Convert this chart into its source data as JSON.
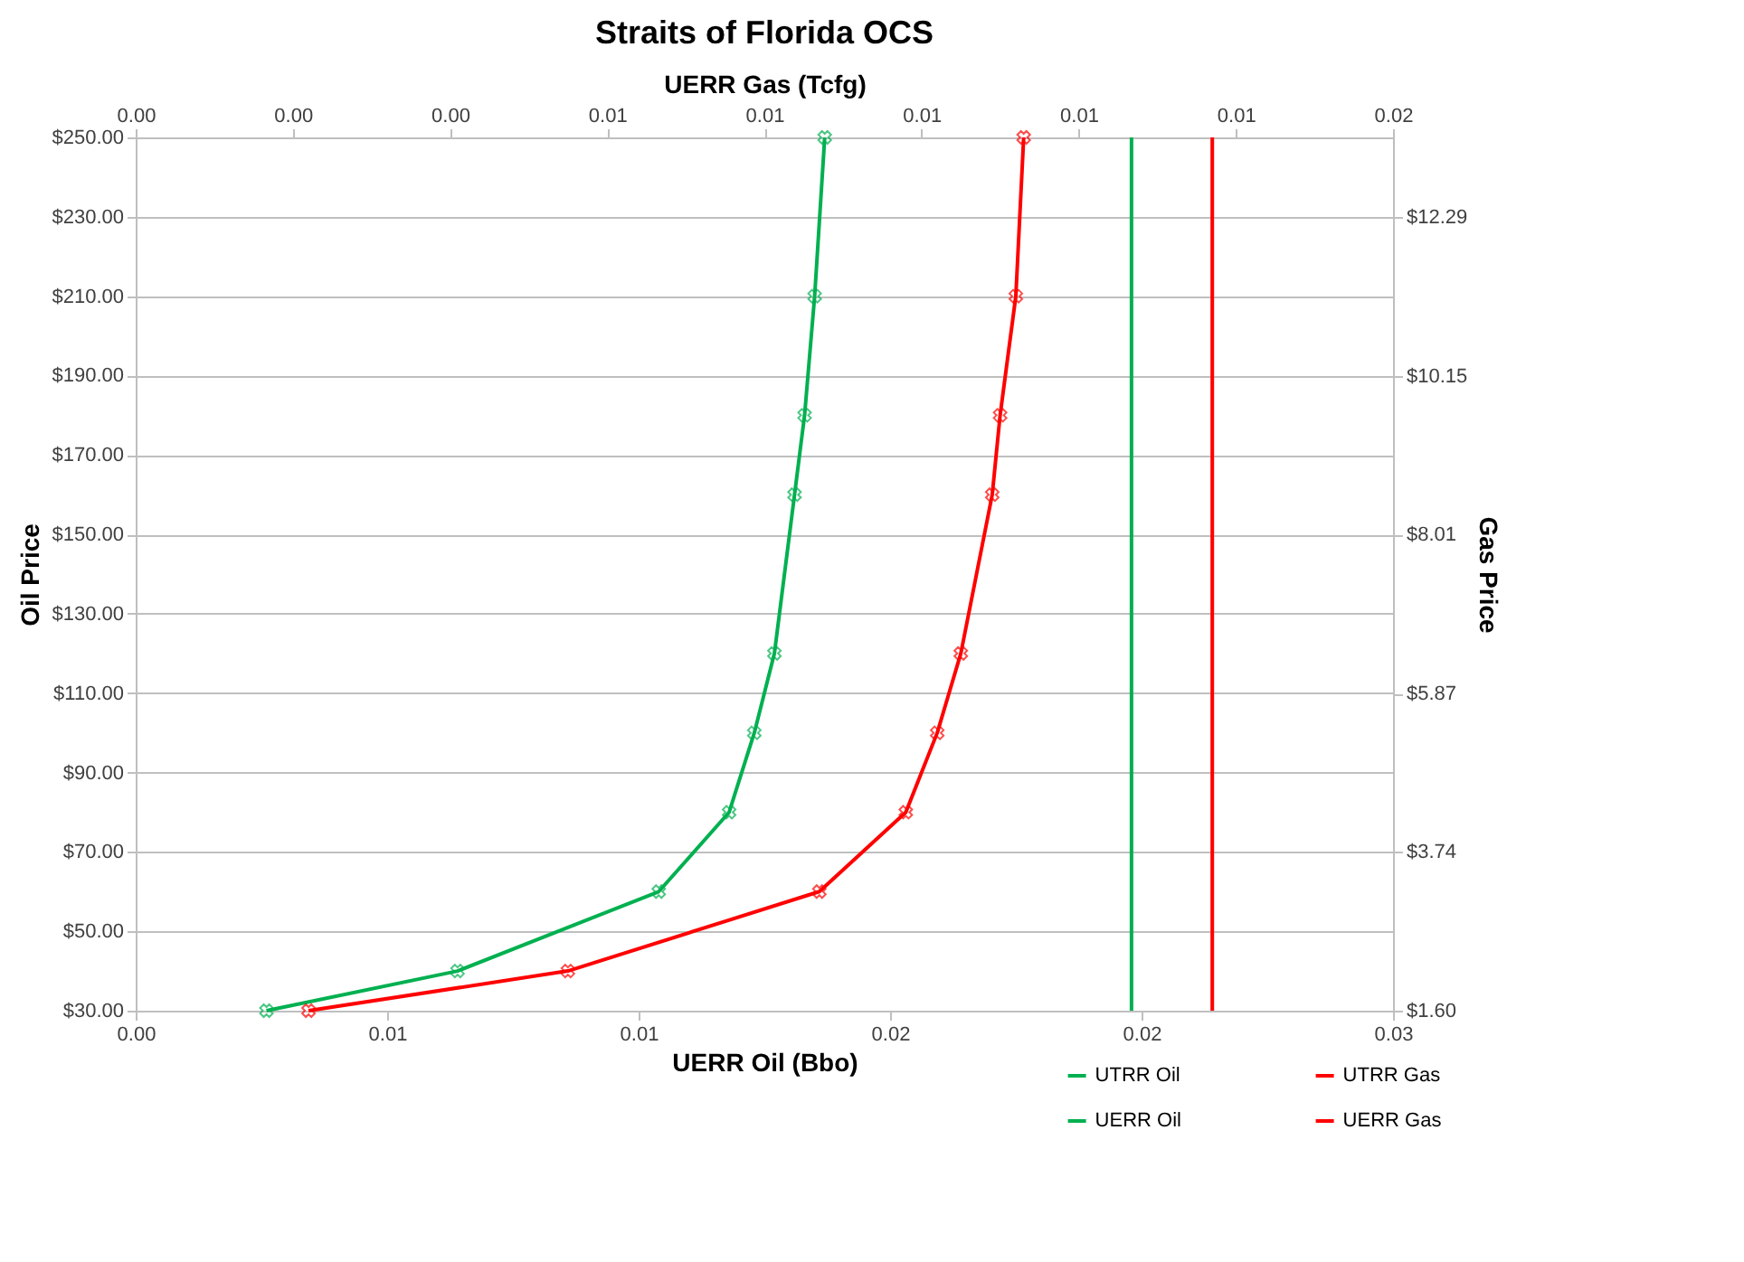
{
  "chart_data": {
    "type": "line",
    "title": "Straits of Florida OCS",
    "xlabel": "UERR Oil (Bbo)",
    "x2label": "UERR Gas (Tcfg)",
    "ylabel": "Oil Price",
    "y2label": "Gas Price",
    "xlim": [
      0,
      0.025
    ],
    "xticks": [
      {
        "value": 0,
        "label": "0.00"
      },
      {
        "value": 0.005,
        "label": "0.01"
      },
      {
        "value": 0.01,
        "label": "0.01"
      },
      {
        "value": 0.015,
        "label": "0.02"
      },
      {
        "value": 0.02,
        "label": "0.02"
      },
      {
        "value": 0.025,
        "label": "0.03"
      }
    ],
    "x2lim": [
      0,
      0.016
    ],
    "x2ticks": [
      {
        "value": 0,
        "label": "0.00"
      },
      {
        "value": 0.002,
        "label": "0.00"
      },
      {
        "value": 0.004,
        "label": "0.00"
      },
      {
        "value": 0.006,
        "label": "0.01"
      },
      {
        "value": 0.008,
        "label": "0.01"
      },
      {
        "value": 0.01,
        "label": "0.01"
      },
      {
        "value": 0.012,
        "label": "0.01"
      },
      {
        "value": 0.014,
        "label": "0.01"
      },
      {
        "value": 0.016,
        "label": "0.02"
      }
    ],
    "ylim": [
      30,
      250
    ],
    "yticks": [
      {
        "value": 30,
        "label": "$30.00"
      },
      {
        "value": 50,
        "label": "$50.00"
      },
      {
        "value": 70,
        "label": "$70.00"
      },
      {
        "value": 90,
        "label": "$90.00"
      },
      {
        "value": 110,
        "label": "$110.00"
      },
      {
        "value": 130,
        "label": "$130.00"
      },
      {
        "value": 150,
        "label": "$150.00"
      },
      {
        "value": 170,
        "label": "$170.00"
      },
      {
        "value": 190,
        "label": "$190.00"
      },
      {
        "value": 210,
        "label": "$210.00"
      },
      {
        "value": 230,
        "label": "$230.00"
      },
      {
        "value": 250,
        "label": "$250.00"
      }
    ],
    "y2lim": [
      1.6,
      13.36
    ],
    "y2ticks": [
      {
        "value": 1.6,
        "label": "$1.60"
      },
      {
        "value": 3.74,
        "label": "$3.74"
      },
      {
        "value": 5.87,
        "label": "$5.87"
      },
      {
        "value": 8.01,
        "label": "$8.01"
      },
      {
        "value": 10.15,
        "label": "$10.15"
      },
      {
        "value": 12.29,
        "label": "$12.29"
      }
    ],
    "grid": "y",
    "legend": "bottom right",
    "series": [
      {
        "name": "UTRR Oil",
        "color": "#00b050",
        "marker": "none",
        "x": [
          0.0198,
          0.0198
        ],
        "values": [
          30,
          250
        ]
      },
      {
        "name": "UERR Oil",
        "color": "#00b050",
        "marker": "cross",
        "x": [
          0.0026,
          0.0064,
          0.0104,
          0.0118,
          0.0123,
          0.0127,
          0.0131,
          0.0133,
          0.0135,
          0.0137
        ],
        "values": [
          30,
          40,
          60,
          80,
          100,
          120,
          160,
          180,
          210,
          250
        ]
      },
      {
        "name": "UTRR Gas",
        "color": "#ff0000",
        "marker": "none",
        "axis": "x2",
        "x": [
          0.0137,
          0.0137
        ],
        "values": [
          30,
          250
        ]
      },
      {
        "name": "UERR Gas",
        "color": "#ff0000",
        "marker": "cross",
        "axis": "x2",
        "x": [
          0.0022,
          0.0055,
          0.0087,
          0.0098,
          0.0102,
          0.0105,
          0.0109,
          0.011,
          0.0112,
          0.0113
        ],
        "values": [
          30,
          40,
          60,
          80,
          100,
          120,
          160,
          180,
          210,
          250
        ]
      }
    ]
  }
}
